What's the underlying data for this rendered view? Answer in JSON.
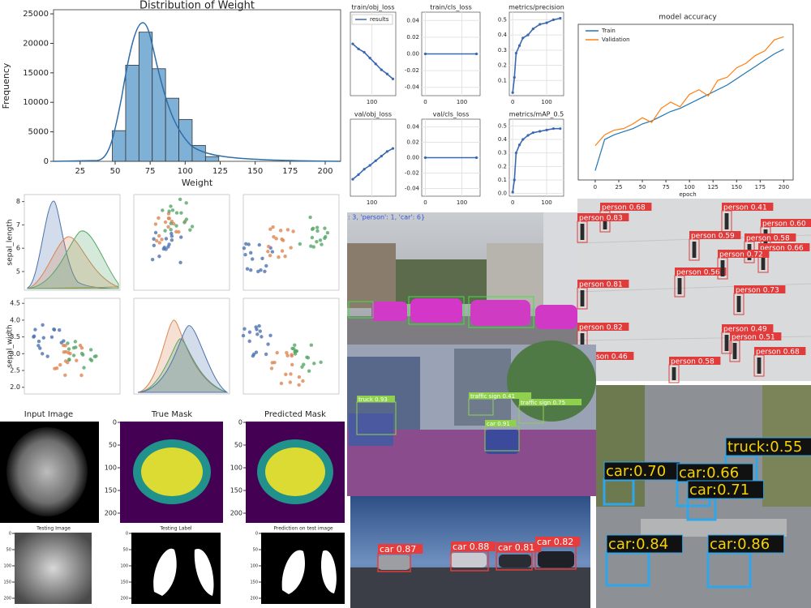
{
  "weight_histogram": {
    "title": "Distribution of Weight",
    "x_label": "Weight",
    "y_label": "Frequency",
    "bins": [
      48,
      57.5,
      67,
      76.5,
      86,
      95.5,
      105,
      114.5,
      124
    ],
    "counts": [
      5200,
      16300,
      21900,
      15700,
      10700,
      7100,
      2700,
      800
    ],
    "color": "#7fb0d6",
    "xlim": [
      6,
      211
    ],
    "ylim": [
      0,
      25700
    ],
    "xticks": [
      25,
      50,
      75,
      100,
      125,
      150,
      175,
      200
    ],
    "yticks": [
      0,
      5000,
      10000,
      15000,
      20000,
      25000
    ]
  },
  "training_metrics": {
    "legend": "results",
    "color": "#3a68b0",
    "plots": [
      {
        "title": "train/obj_loss",
        "x": [
          60,
          72,
          84,
          96,
          108,
          120,
          132,
          144
        ],
        "values": [
          0.62,
          0.56,
          0.52,
          0.45,
          0.38,
          0.31,
          0.26,
          0.2
        ],
        "xlim": [
          55,
          150
        ],
        "ylim": [
          0,
          1
        ],
        "xticks": [
          100
        ],
        "yticks": []
      },
      {
        "title": "train/cls_loss",
        "x": [
          0,
          140
        ],
        "values": [
          0,
          0
        ],
        "xlim": [
          -10,
          150
        ],
        "ylim": [
          -0.05,
          0.05
        ],
        "xticks": [
          0,
          100
        ],
        "yticks": [
          0.04,
          0.02,
          {
            "value": 0,
            "label": "0.00"
          },
          -0.02,
          -0.04
        ]
      },
      {
        "title": "metrics/precision",
        "x": [
          0,
          5,
          10,
          20,
          30,
          45,
          60,
          80,
          100,
          120,
          140
        ],
        "values": [
          0.02,
          0.12,
          0.28,
          0.33,
          0.38,
          0.4,
          0.44,
          0.47,
          0.48,
          0.5,
          0.51
        ],
        "xlim": [
          -10,
          150
        ],
        "ylim": [
          0,
          0.55
        ],
        "xticks": [
          0,
          100
        ],
        "yticks": [
          0.5,
          0.4,
          0.3,
          0.2,
          0.1
        ]
      },
      {
        "title": "val/obj_loss",
        "x": [
          60,
          72,
          84,
          96,
          108,
          120,
          132,
          144
        ],
        "values": [
          0.22,
          0.28,
          0.35,
          0.4,
          0.46,
          0.52,
          0.58,
          0.62
        ],
        "xlim": [
          55,
          150
        ],
        "ylim": [
          0,
          1
        ],
        "xticks": [
          100
        ],
        "yticks": []
      },
      {
        "title": "val/cls_loss",
        "x": [
          0,
          140
        ],
        "values": [
          0,
          0
        ],
        "xlim": [
          -10,
          150
        ],
        "ylim": [
          -0.05,
          0.05
        ],
        "xticks": [
          0,
          100
        ],
        "yticks": [
          0.04,
          0.02,
          {
            "value": 0,
            "label": "0.00"
          },
          -0.02,
          -0.04
        ]
      },
      {
        "title": "metrics/mAP_0.5",
        "x": [
          0,
          5,
          10,
          20,
          30,
          45,
          60,
          80,
          100,
          120,
          140
        ],
        "values": [
          0.01,
          0.1,
          0.3,
          0.36,
          0.4,
          0.43,
          0.45,
          0.46,
          0.47,
          0.48,
          0.48
        ],
        "xlim": [
          -10,
          150
        ],
        "ylim": [
          -0.02,
          0.55
        ],
        "xticks": [
          0,
          100
        ],
        "yticks": [
          {
            "value": 0,
            "label": "0.0"
          },
          0.1,
          0.2,
          0.3,
          0.4,
          0.5
        ]
      }
    ]
  },
  "model_accuracy": {
    "title": "model accuracy",
    "x_label": "epoch",
    "x": [
      0,
      10,
      20,
      30,
      40,
      50,
      60,
      70,
      80,
      90,
      100,
      110,
      120,
      130,
      140,
      150,
      160,
      170,
      180,
      190,
      200
    ],
    "series": [
      {
        "name": "Train",
        "color": "#1f77b4",
        "values": [
          0.06,
          0.26,
          0.29,
          0.31,
          0.33,
          0.36,
          0.38,
          0.41,
          0.44,
          0.46,
          0.49,
          0.52,
          0.55,
          0.58,
          0.61,
          0.65,
          0.69,
          0.73,
          0.77,
          0.81,
          0.84
        ]
      },
      {
        "name": "Validation",
        "color": "#ff7f0e",
        "values": [
          0.22,
          0.29,
          0.32,
          0.33,
          0.36,
          0.4,
          0.37,
          0.46,
          0.5,
          0.47,
          0.55,
          0.58,
          0.54,
          0.64,
          0.66,
          0.72,
          0.75,
          0.8,
          0.83,
          0.9,
          0.92
        ]
      }
    ],
    "xlim": [
      -18,
      210
    ],
    "ylim": [
      0,
      1
    ],
    "xticks": [
      0,
      25,
      50,
      75,
      100,
      125,
      150,
      175,
      200
    ]
  },
  "pair_plot": {
    "y_labels": [
      "sepal_length",
      "sepal_width"
    ],
    "yticks_top": [
      5,
      6,
      7,
      8
    ],
    "ylim_top": [
      4.2,
      8.3
    ],
    "yticks_bottom": [
      {
        "value": 2,
        "label": "2.0"
      },
      2.5,
      {
        "value": 3,
        "label": "3.0"
      },
      3.5,
      {
        "value": 4,
        "label": "4.0"
      },
      4.5
    ],
    "ylim_bottom": [
      1.8,
      4.65
    ]
  },
  "street_segmentation": {
    "caption": ": 3, 'person': 1, 'car': 6}"
  },
  "crowd_detection": {
    "labels": [
      "person 0.68",
      "person 0.83",
      "person 0.41",
      "person 0.59",
      "person 0.60",
      "person 0.58",
      "person 0.66",
      "person 0.56",
      "person 0.72",
      "person 0.81",
      "person 0.73",
      "person 0.82",
      "person 0.49",
      "person 0.51",
      "person 0.46",
      "person 0.58",
      "person 0.68"
    ]
  },
  "brain_segmentation": {
    "titles": [
      "Input Image",
      "True Mask",
      "Predicted Mask"
    ],
    "ticks": [
      0,
      50,
      100,
      150,
      200
    ]
  },
  "city_detection": {
    "labels": [
      "truck 0.93",
      "traffic sign 0.41",
      "traffic sign 0.75",
      "car 0.91"
    ]
  },
  "traffic_detection": {
    "labels": [
      "truck:0.55",
      "car:0.70",
      "car:0.66",
      "car:0.71",
      "car:0.84",
      "car:0.86"
    ]
  },
  "chest_segmentation": {
    "titles": [
      "Testing Image",
      "Testing Label",
      "Prediction on test image"
    ],
    "ticks": [
      0,
      50,
      100,
      150,
      200
    ]
  },
  "night_detection": {
    "labels": [
      "car 0.87",
      "car 0.88",
      "car 0.81",
      "car 0.82"
    ]
  }
}
